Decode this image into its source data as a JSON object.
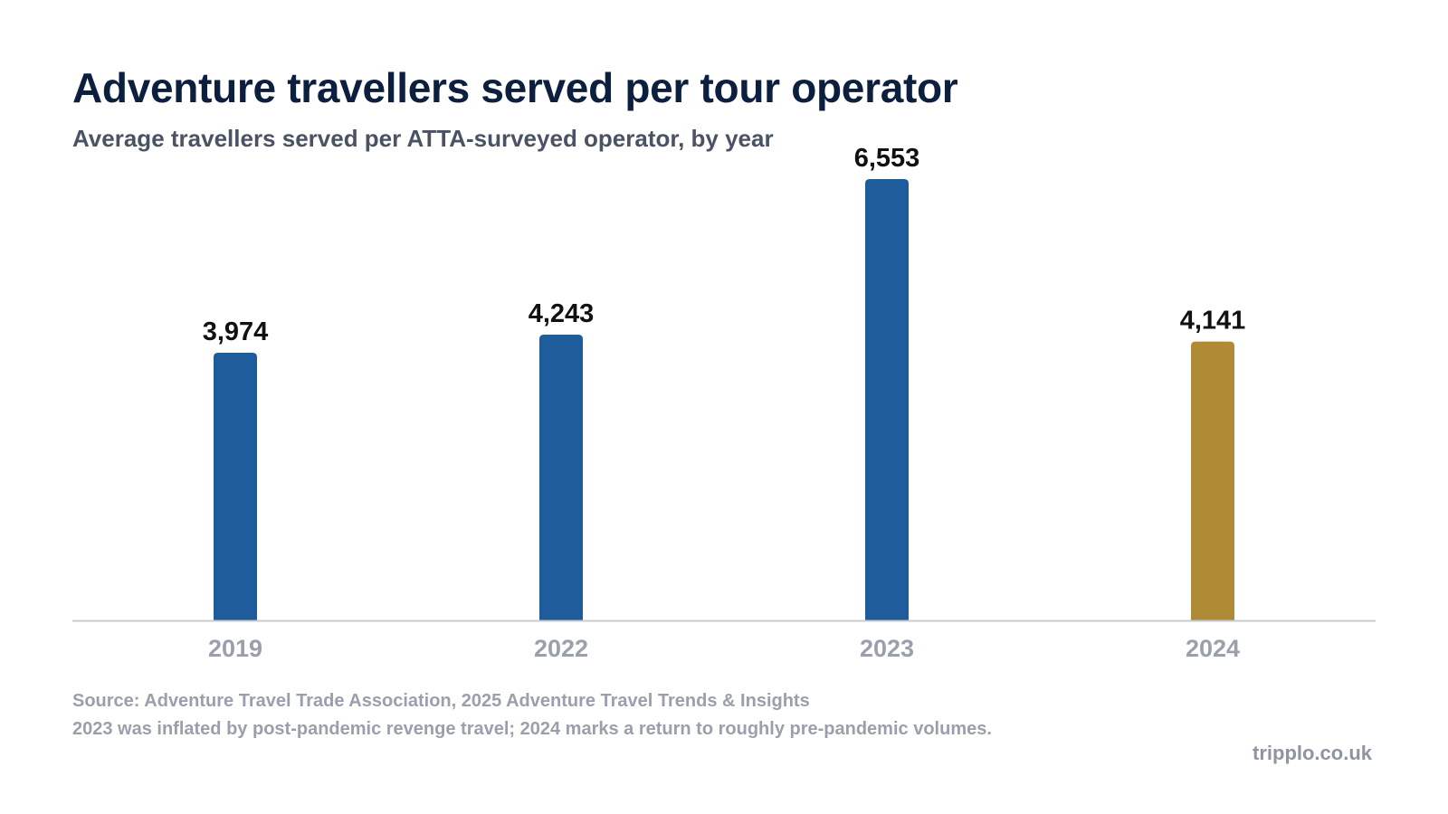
{
  "chart_data": {
    "type": "bar",
    "title": "Adventure travellers served per tour operator",
    "subtitle": "Average travellers served per ATTA-surveyed operator, by year",
    "categories": [
      "2019",
      "2022",
      "2023",
      "2024"
    ],
    "values": [
      3974,
      4243,
      6553,
      4141
    ],
    "value_labels": [
      "3,974",
      "4,243",
      "6,553",
      "4,141"
    ],
    "ylim": [
      0,
      6553
    ],
    "grid": false,
    "bar_colors": [
      "#1f5c9c",
      "#1f5c9c",
      "#1f5c9c",
      "#b08b35"
    ],
    "xlabel": "",
    "ylabel": ""
  },
  "footer": {
    "source": "Source: Adventure Travel Trade Association, 2025 Adventure Travel Trends & Insights",
    "note": "2023 was inflated by post-pandemic revenge travel; 2024 marks a return to roughly pre-pandemic volumes."
  },
  "brand": "tripplo.co.uk",
  "colors": {
    "title": "#0c1f3f",
    "subtitle": "#4a5363",
    "axis": "#c8ccd2",
    "tick_label": "#9aa0ab",
    "value_label": "#111111"
  }
}
